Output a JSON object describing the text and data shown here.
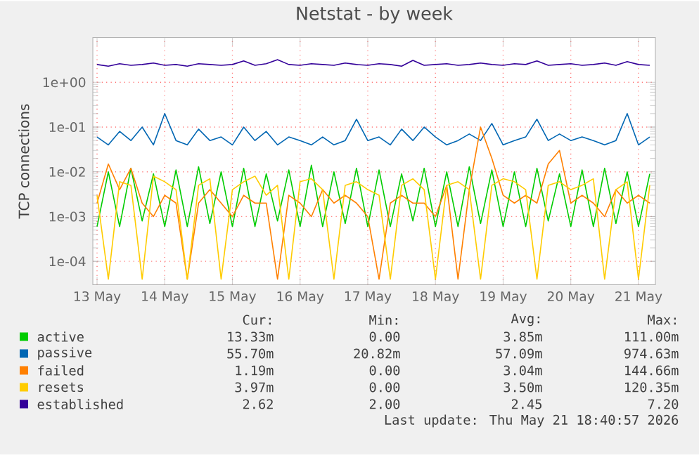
{
  "chart_data": {
    "type": "line",
    "title": "Netstat - by week",
    "ylabel": "TCP connections",
    "log": true,
    "grid": true,
    "legend": "bottom",
    "x": [
      "2026-05-13T00:00",
      "2026-05-13T04:00",
      "2026-05-13T08:00",
      "2026-05-13T12:00",
      "2026-05-13T16:00",
      "2026-05-13T20:00",
      "2026-05-14T00:00",
      "2026-05-14T04:00",
      "2026-05-14T08:00",
      "2026-05-14T12:00",
      "2026-05-14T16:00",
      "2026-05-14T20:00",
      "2026-05-15T00:00",
      "2026-05-15T04:00",
      "2026-05-15T08:00",
      "2026-05-15T12:00",
      "2026-05-15T16:00",
      "2026-05-15T20:00",
      "2026-05-16T00:00",
      "2026-05-16T04:00",
      "2026-05-16T08:00",
      "2026-05-16T12:00",
      "2026-05-16T16:00",
      "2026-05-16T20:00",
      "2026-05-17T00:00",
      "2026-05-17T04:00",
      "2026-05-17T08:00",
      "2026-05-17T12:00",
      "2026-05-17T16:00",
      "2026-05-17T20:00",
      "2026-05-18T00:00",
      "2026-05-18T04:00",
      "2026-05-18T08:00",
      "2026-05-18T12:00",
      "2026-05-18T16:00",
      "2026-05-18T20:00",
      "2026-05-19T00:00",
      "2026-05-19T04:00",
      "2026-05-19T08:00",
      "2026-05-19T12:00",
      "2026-05-19T16:00",
      "2026-05-19T20:00",
      "2026-05-20T00:00",
      "2026-05-20T04:00",
      "2026-05-20T08:00",
      "2026-05-20T12:00",
      "2026-05-20T16:00",
      "2026-05-20T20:00",
      "2026-05-21T00:00",
      "2026-05-21T04:00"
    ],
    "xlim": [
      "2026-05-12T22:30",
      "2026-05-21T06:00"
    ],
    "xticks": [
      {
        "value": "2026-05-13",
        "label": "13 May"
      },
      {
        "value": "2026-05-14",
        "label": "14 May"
      },
      {
        "value": "2026-05-15",
        "label": "15 May"
      },
      {
        "value": "2026-05-16",
        "label": "16 May"
      },
      {
        "value": "2026-05-17",
        "label": "17 May"
      },
      {
        "value": "2026-05-18",
        "label": "18 May"
      },
      {
        "value": "2026-05-19",
        "label": "19 May"
      },
      {
        "value": "2026-05-20",
        "label": "20 May"
      },
      {
        "value": "2026-05-21",
        "label": "21 May"
      }
    ],
    "ylim": [
      3e-05,
      10
    ],
    "yticks": [
      {
        "value": 0.0001,
        "label": "1e-04"
      },
      {
        "value": 0.001,
        "label": "1e-03"
      },
      {
        "value": 0.01,
        "label": "1e-02"
      },
      {
        "value": 0.1,
        "label": "1e-01"
      },
      {
        "value": 1,
        "label": "1e+00"
      }
    ],
    "series": [
      {
        "name": "active",
        "color": "#00cc00",
        "values": [
          0.0006,
          0.01,
          0.0006,
          0.012,
          0.0008,
          0.009,
          0.0006,
          0.011,
          0.0006,
          0.013,
          0.0007,
          0.01,
          0.0006,
          0.012,
          0.0006,
          0.009,
          0.0008,
          0.011,
          0.0006,
          0.014,
          0.0006,
          0.01,
          0.0007,
          0.012,
          0.0006,
          0.011,
          0.0006,
          0.009,
          0.0008,
          0.012,
          0.0006,
          0.01,
          0.0006,
          0.013,
          0.0007,
          0.011,
          0.0006,
          0.01,
          0.0006,
          0.012,
          0.0008,
          0.009,
          0.0006,
          0.011,
          0.0006,
          0.012,
          0.0007,
          0.01,
          0.0006,
          0.009
        ]
      },
      {
        "name": "passive",
        "color": "#0066b3",
        "values": [
          0.06,
          0.04,
          0.08,
          0.05,
          0.1,
          0.04,
          0.2,
          0.05,
          0.04,
          0.09,
          0.05,
          0.06,
          0.04,
          0.1,
          0.05,
          0.08,
          0.04,
          0.06,
          0.05,
          0.04,
          0.06,
          0.04,
          0.05,
          0.15,
          0.05,
          0.06,
          0.04,
          0.09,
          0.05,
          0.1,
          0.06,
          0.04,
          0.05,
          0.07,
          0.05,
          0.12,
          0.04,
          0.05,
          0.06,
          0.15,
          0.05,
          0.07,
          0.05,
          0.06,
          0.05,
          0.04,
          0.05,
          0.2,
          0.04,
          0.06
        ]
      },
      {
        "name": "failed",
        "color": "#ff8000",
        "values": [
          0.002,
          0.015,
          0.004,
          0.012,
          0.002,
          0.001,
          0.003,
          0.002,
          4e-05,
          0.002,
          0.004,
          0.002,
          0.001,
          0.003,
          0.002,
          0.002,
          4e-05,
          0.003,
          0.002,
          0.001,
          0.004,
          0.002,
          0.003,
          0.002,
          0.001,
          4e-05,
          0.002,
          0.003,
          0.002,
          0.002,
          0.001,
          0.005,
          4e-05,
          0.004,
          0.1,
          0.02,
          0.003,
          0.002,
          0.003,
          0.002,
          0.015,
          0.03,
          0.002,
          0.003,
          0.002,
          0.001,
          0.004,
          0.002,
          0.003,
          0.002
        ]
      },
      {
        "name": "resets",
        "color": "#ffcc00",
        "values": [
          0.003,
          4e-05,
          0.006,
          0.005,
          4e-05,
          0.008,
          0.006,
          0.004,
          4e-05,
          0.005,
          0.007,
          4e-05,
          0.004,
          0.006,
          0.008,
          0.003,
          0.005,
          4e-05,
          0.006,
          0.007,
          0.004,
          4e-05,
          0.005,
          0.006,
          0.004,
          0.003,
          4e-05,
          0.005,
          0.007,
          0.004,
          4e-05,
          0.005,
          0.006,
          0.004,
          4e-05,
          0.005,
          0.007,
          0.006,
          0.004,
          4e-05,
          0.005,
          0.006,
          0.004,
          0.005,
          0.007,
          4e-05,
          0.004,
          0.006,
          4e-05,
          0.005
        ]
      },
      {
        "name": "established",
        "color": "#330099",
        "values": [
          2.5,
          2.3,
          2.6,
          2.4,
          2.5,
          2.7,
          2.4,
          2.5,
          2.3,
          2.6,
          2.5,
          2.4,
          2.5,
          3.0,
          2.4,
          2.6,
          3.2,
          2.5,
          2.4,
          2.6,
          2.5,
          2.4,
          2.7,
          2.5,
          2.4,
          2.6,
          2.5,
          2.3,
          3.1,
          2.4,
          2.5,
          2.6,
          2.4,
          2.5,
          2.7,
          2.5,
          2.4,
          2.6,
          2.5,
          3.0,
          2.4,
          2.5,
          2.6,
          2.4,
          2.5,
          2.7,
          2.4,
          2.9,
          2.5,
          2.4
        ]
      }
    ],
    "annotations": [
      "Cur:",
      "Min:",
      "Avg:",
      "Max:",
      "13.33m",
      "0.00",
      "3.85m",
      "111.00m",
      "55.70m",
      "20.82m",
      "57.09m",
      "974.63m",
      "1.19m",
      "0.00",
      "3.04m",
      "144.66m",
      "3.97m",
      "0.00",
      "3.50m",
      "120.35m",
      "2.62",
      "2.00",
      "2.45",
      "7.20",
      "Last update: Thu May 21 18:40:57 2026"
    ]
  }
}
